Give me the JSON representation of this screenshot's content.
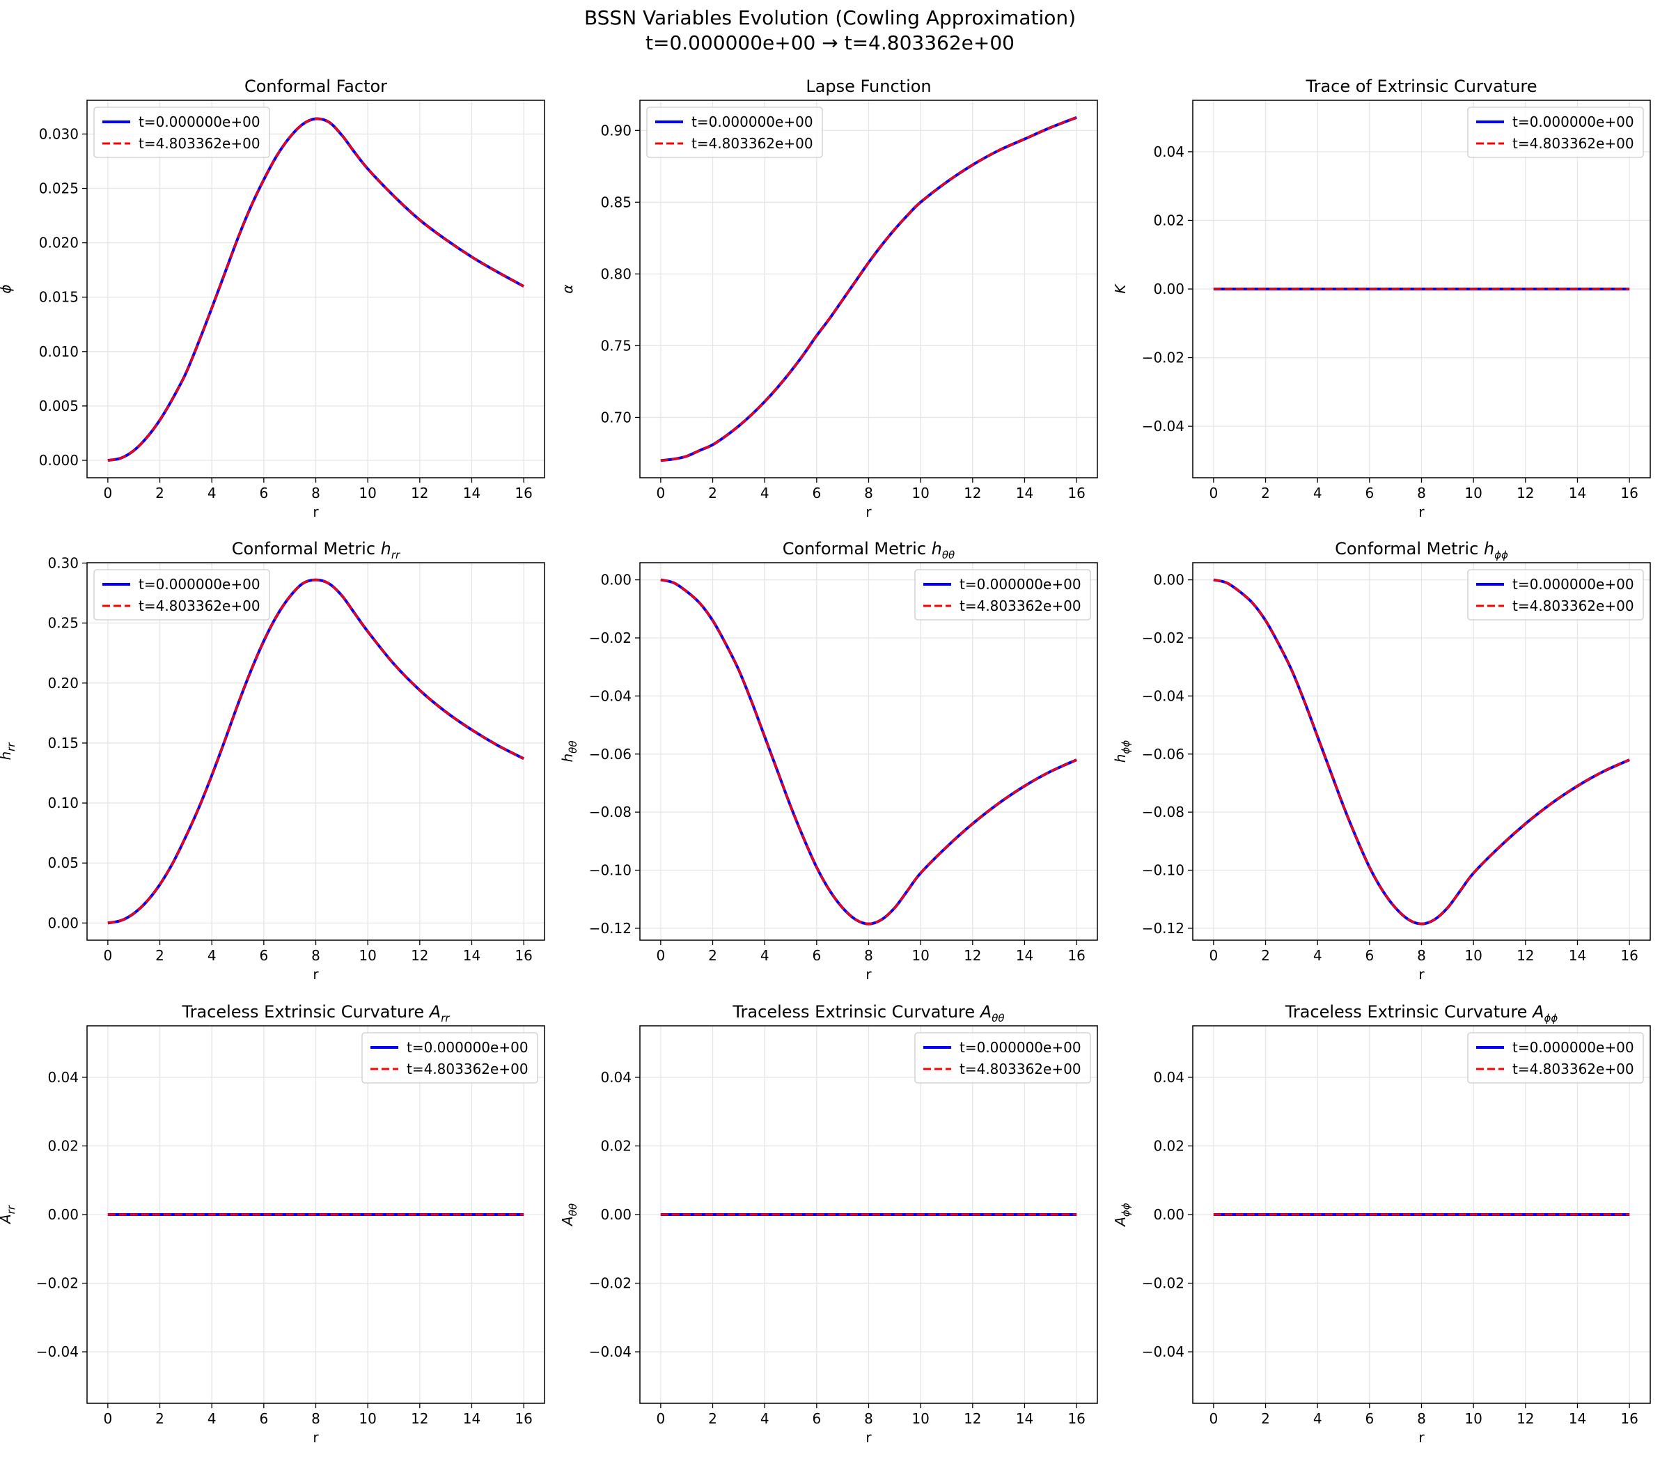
{
  "figure": {
    "title_line1": "BSSN Variables Evolution (Cowling Approximation)",
    "title_line2": "t=0.000000e+00 → t=4.803362e+00"
  },
  "legend": {
    "initial": "t=0.000000e+00",
    "final": "t=4.803362e+00"
  },
  "colors": {
    "initial": "#0000ff",
    "final": "#ff0000",
    "grid": "#e6e6e6"
  },
  "chart_data": [
    {
      "type": "line",
      "title": "Conformal Factor",
      "xlabel": "r",
      "ylabel": "ϕ",
      "xlim": [
        -0.8,
        16.8
      ],
      "ylim": [
        -0.0016,
        0.0331
      ],
      "xticks": [
        0,
        2,
        4,
        6,
        8,
        10,
        12,
        14,
        16
      ],
      "yticks": [
        0.0,
        0.005,
        0.01,
        0.015,
        0.02,
        0.025,
        0.03
      ],
      "ytick_labels": [
        "0.000",
        "0.005",
        "0.010",
        "0.015",
        "0.020",
        "0.025",
        "0.030"
      ],
      "legend_position": "upper-left",
      "grid": true,
      "x": [
        0,
        0.5,
        1,
        1.5,
        2,
        2.5,
        3,
        3.5,
        4,
        4.5,
        5,
        5.5,
        6,
        6.5,
        7,
        7.5,
        8,
        8.5,
        9,
        9.5,
        10,
        11,
        12,
        13,
        14,
        15,
        16
      ],
      "series": [
        {
          "name": "t=0.000000e+00",
          "values": [
            0.0,
            0.0002,
            0.0009,
            0.0021,
            0.0037,
            0.0057,
            0.008,
            0.0109,
            0.014,
            0.0172,
            0.0204,
            0.0233,
            0.0258,
            0.028,
            0.0297,
            0.0309,
            0.0314,
            0.0311,
            0.0299,
            0.0283,
            0.0268,
            0.0243,
            0.0221,
            0.0203,
            0.0187,
            0.0173,
            0.016
          ]
        },
        {
          "name": "t=4.803362e+00",
          "values": [
            0.0,
            0.0002,
            0.0009,
            0.0021,
            0.0037,
            0.0057,
            0.008,
            0.0109,
            0.014,
            0.0172,
            0.0204,
            0.0233,
            0.0258,
            0.028,
            0.0297,
            0.0309,
            0.0314,
            0.0311,
            0.0299,
            0.0283,
            0.0268,
            0.0243,
            0.0221,
            0.0203,
            0.0187,
            0.0173,
            0.016
          ]
        }
      ]
    },
    {
      "type": "line",
      "title": "Lapse Function",
      "xlabel": "r",
      "ylabel": "α",
      "xlim": [
        -0.8,
        16.8
      ],
      "ylim": [
        0.658,
        0.921
      ],
      "xticks": [
        0,
        2,
        4,
        6,
        8,
        10,
        12,
        14,
        16
      ],
      "yticks": [
        0.7,
        0.75,
        0.8,
        0.85,
        0.9
      ],
      "ytick_labels": [
        "0.70",
        "0.75",
        "0.80",
        "0.85",
        "0.90"
      ],
      "legend_position": "upper-left",
      "grid": true,
      "x": [
        0,
        0.5,
        1,
        1.5,
        2,
        2.5,
        3,
        3.5,
        4,
        4.5,
        5,
        5.5,
        6,
        6.5,
        7,
        7.5,
        8,
        8.5,
        9,
        9.5,
        10,
        11,
        12,
        13,
        14,
        15,
        16
      ],
      "series": [
        {
          "name": "t=0.000000e+00",
          "values": [
            0.67,
            0.671,
            0.673,
            0.677,
            0.681,
            0.687,
            0.694,
            0.702,
            0.711,
            0.721,
            0.732,
            0.744,
            0.757,
            0.769,
            0.782,
            0.795,
            0.808,
            0.82,
            0.831,
            0.841,
            0.85,
            0.864,
            0.876,
            0.886,
            0.894,
            0.902,
            0.909
          ]
        },
        {
          "name": "t=4.803362e+00",
          "values": [
            0.67,
            0.671,
            0.673,
            0.677,
            0.681,
            0.687,
            0.694,
            0.702,
            0.711,
            0.721,
            0.732,
            0.744,
            0.757,
            0.769,
            0.782,
            0.795,
            0.808,
            0.82,
            0.831,
            0.841,
            0.85,
            0.864,
            0.876,
            0.886,
            0.894,
            0.902,
            0.909
          ]
        }
      ]
    },
    {
      "type": "line",
      "title": "Trace of Extrinsic Curvature",
      "xlabel": "r",
      "ylabel": "K",
      "xlim": [
        -0.8,
        16.8
      ],
      "ylim": [
        -0.055,
        0.055
      ],
      "xticks": [
        0,
        2,
        4,
        6,
        8,
        10,
        12,
        14,
        16
      ],
      "yticks": [
        -0.04,
        -0.02,
        0.0,
        0.02,
        0.04
      ],
      "ytick_labels": [
        "−0.04",
        "−0.02",
        "0.00",
        "0.02",
        "0.04"
      ],
      "legend_position": "upper-right",
      "grid": true,
      "x": [
        0,
        16
      ],
      "series": [
        {
          "name": "t=0.000000e+00",
          "values": [
            0,
            0
          ]
        },
        {
          "name": "t=4.803362e+00",
          "values": [
            0,
            0
          ]
        }
      ]
    },
    {
      "type": "line",
      "title": "Conformal Metric h",
      "title_sub": "rr",
      "xlabel": "r",
      "ylabel": "h",
      "ylabel_sub": "rr",
      "xlim": [
        -0.8,
        16.8
      ],
      "ylim": [
        -0.0143,
        0.3003
      ],
      "xticks": [
        0,
        2,
        4,
        6,
        8,
        10,
        12,
        14,
        16
      ],
      "yticks": [
        0.0,
        0.05,
        0.1,
        0.15,
        0.2,
        0.25,
        0.3
      ],
      "ytick_labels": [
        "0.00",
        "0.05",
        "0.10",
        "0.15",
        "0.20",
        "0.25",
        "0.30"
      ],
      "legend_position": "upper-left",
      "grid": true,
      "x": [
        0,
        0.5,
        1,
        1.5,
        2,
        2.5,
        3,
        3.5,
        4,
        4.5,
        5,
        5.5,
        6,
        6.5,
        7,
        7.5,
        8,
        8.5,
        9,
        9.5,
        10,
        11,
        12,
        13,
        14,
        15,
        16
      ],
      "series": [
        {
          "name": "t=0.000000e+00",
          "values": [
            0.0,
            0.002,
            0.008,
            0.018,
            0.032,
            0.05,
            0.072,
            0.096,
            0.123,
            0.152,
            0.182,
            0.21,
            0.235,
            0.256,
            0.272,
            0.283,
            0.286,
            0.283,
            0.273,
            0.258,
            0.243,
            0.216,
            0.194,
            0.176,
            0.161,
            0.148,
            0.137
          ]
        },
        {
          "name": "t=4.803362e+00",
          "values": [
            0.0,
            0.002,
            0.008,
            0.018,
            0.032,
            0.05,
            0.072,
            0.096,
            0.123,
            0.152,
            0.182,
            0.21,
            0.235,
            0.256,
            0.272,
            0.283,
            0.286,
            0.283,
            0.273,
            0.258,
            0.243,
            0.216,
            0.194,
            0.176,
            0.161,
            0.148,
            0.137
          ]
        }
      ]
    },
    {
      "type": "line",
      "title": "Conformal Metric h",
      "title_sub": "θθ",
      "xlabel": "r",
      "ylabel": "h",
      "ylabel_sub": "θθ",
      "xlim": [
        -0.8,
        16.8
      ],
      "ylim": [
        -0.1241,
        0.0059
      ],
      "xticks": [
        0,
        2,
        4,
        6,
        8,
        10,
        12,
        14,
        16
      ],
      "yticks": [
        -0.12,
        -0.1,
        -0.08,
        -0.06,
        -0.04,
        -0.02,
        0.0
      ],
      "ytick_labels": [
        "−0.12",
        "−0.10",
        "−0.08",
        "−0.06",
        "−0.04",
        "−0.02",
        "0.00"
      ],
      "legend_position": "upper-right",
      "grid": true,
      "x": [
        0,
        0.5,
        1,
        1.5,
        2,
        2.5,
        3,
        3.5,
        4,
        4.5,
        5,
        5.5,
        6,
        6.5,
        7,
        7.5,
        8,
        8.5,
        9,
        9.5,
        10,
        11,
        12,
        13,
        14,
        15,
        16
      ],
      "series": [
        {
          "name": "t=0.000000e+00",
          "values": [
            0.0,
            -0.001,
            -0.004,
            -0.008,
            -0.014,
            -0.022,
            -0.031,
            -0.042,
            -0.054,
            -0.066,
            -0.078,
            -0.089,
            -0.099,
            -0.107,
            -0.113,
            -0.117,
            -0.1185,
            -0.117,
            -0.113,
            -0.107,
            -0.101,
            -0.092,
            -0.084,
            -0.077,
            -0.071,
            -0.066,
            -0.062
          ]
        },
        {
          "name": "t=4.803362e+00",
          "values": [
            0.0,
            -0.001,
            -0.004,
            -0.008,
            -0.014,
            -0.022,
            -0.031,
            -0.042,
            -0.054,
            -0.066,
            -0.078,
            -0.089,
            -0.099,
            -0.107,
            -0.113,
            -0.117,
            -0.1185,
            -0.117,
            -0.113,
            -0.107,
            -0.101,
            -0.092,
            -0.084,
            -0.077,
            -0.071,
            -0.066,
            -0.062
          ]
        }
      ]
    },
    {
      "type": "line",
      "title": "Conformal Metric h",
      "title_sub": "ϕϕ",
      "xlabel": "r",
      "ylabel": "h",
      "ylabel_sub": "ϕϕ",
      "xlim": [
        -0.8,
        16.8
      ],
      "ylim": [
        -0.1241,
        0.0059
      ],
      "xticks": [
        0,
        2,
        4,
        6,
        8,
        10,
        12,
        14,
        16
      ],
      "yticks": [
        -0.12,
        -0.1,
        -0.08,
        -0.06,
        -0.04,
        -0.02,
        0.0
      ],
      "ytick_labels": [
        "−0.12",
        "−0.10",
        "−0.08",
        "−0.06",
        "−0.04",
        "−0.02",
        "0.00"
      ],
      "legend_position": "upper-right",
      "grid": true,
      "x": [
        0,
        0.5,
        1,
        1.5,
        2,
        2.5,
        3,
        3.5,
        4,
        4.5,
        5,
        5.5,
        6,
        6.5,
        7,
        7.5,
        8,
        8.5,
        9,
        9.5,
        10,
        11,
        12,
        13,
        14,
        15,
        16
      ],
      "series": [
        {
          "name": "t=0.000000e+00",
          "values": [
            0.0,
            -0.001,
            -0.004,
            -0.008,
            -0.014,
            -0.022,
            -0.031,
            -0.042,
            -0.054,
            -0.066,
            -0.078,
            -0.089,
            -0.099,
            -0.107,
            -0.113,
            -0.117,
            -0.1185,
            -0.117,
            -0.113,
            -0.107,
            -0.101,
            -0.092,
            -0.084,
            -0.077,
            -0.071,
            -0.066,
            -0.062
          ]
        },
        {
          "name": "t=4.803362e+00",
          "values": [
            0.0,
            -0.001,
            -0.004,
            -0.008,
            -0.014,
            -0.022,
            -0.031,
            -0.042,
            -0.054,
            -0.066,
            -0.078,
            -0.089,
            -0.099,
            -0.107,
            -0.113,
            -0.117,
            -0.1185,
            -0.117,
            -0.113,
            -0.107,
            -0.101,
            -0.092,
            -0.084,
            -0.077,
            -0.071,
            -0.066,
            -0.062
          ]
        }
      ]
    },
    {
      "type": "line",
      "title": "Traceless Extrinsic Curvature A",
      "title_sub": "rr",
      "xlabel": "r",
      "ylabel": "A",
      "ylabel_sub": "rr",
      "xlim": [
        -0.8,
        16.8
      ],
      "ylim": [
        -0.055,
        0.055
      ],
      "xticks": [
        0,
        2,
        4,
        6,
        8,
        10,
        12,
        14,
        16
      ],
      "yticks": [
        -0.04,
        -0.02,
        0.0,
        0.02,
        0.04
      ],
      "ytick_labels": [
        "−0.04",
        "−0.02",
        "0.00",
        "0.02",
        "0.04"
      ],
      "legend_position": "upper-right",
      "grid": true,
      "x": [
        0,
        16
      ],
      "series": [
        {
          "name": "t=0.000000e+00",
          "values": [
            0,
            0
          ]
        },
        {
          "name": "t=4.803362e+00",
          "values": [
            0,
            0
          ]
        }
      ]
    },
    {
      "type": "line",
      "title": "Traceless Extrinsic Curvature A",
      "title_sub": "θθ",
      "xlabel": "r",
      "ylabel": "A",
      "ylabel_sub": "θθ",
      "xlim": [
        -0.8,
        16.8
      ],
      "ylim": [
        -0.055,
        0.055
      ],
      "xticks": [
        0,
        2,
        4,
        6,
        8,
        10,
        12,
        14,
        16
      ],
      "yticks": [
        -0.04,
        -0.02,
        0.0,
        0.02,
        0.04
      ],
      "ytick_labels": [
        "−0.04",
        "−0.02",
        "0.00",
        "0.02",
        "0.04"
      ],
      "legend_position": "upper-right",
      "grid": true,
      "x": [
        0,
        16
      ],
      "series": [
        {
          "name": "t=0.000000e+00",
          "values": [
            0,
            0
          ]
        },
        {
          "name": "t=4.803362e+00",
          "values": [
            0,
            0
          ]
        }
      ]
    },
    {
      "type": "line",
      "title": "Traceless Extrinsic Curvature A",
      "title_sub": "ϕϕ",
      "xlabel": "r",
      "ylabel": "A",
      "ylabel_sub": "ϕϕ",
      "xlim": [
        -0.8,
        16.8
      ],
      "ylim": [
        -0.055,
        0.055
      ],
      "xticks": [
        0,
        2,
        4,
        6,
        8,
        10,
        12,
        14,
        16
      ],
      "yticks": [
        -0.04,
        -0.02,
        0.0,
        0.02,
        0.04
      ],
      "ytick_labels": [
        "−0.04",
        "−0.02",
        "0.00",
        "0.02",
        "0.04"
      ],
      "legend_position": "upper-right",
      "grid": true,
      "x": [
        0,
        16
      ],
      "series": [
        {
          "name": "t=0.000000e+00",
          "values": [
            0,
            0
          ]
        },
        {
          "name": "t=4.803362e+00",
          "values": [
            0,
            0
          ]
        }
      ]
    }
  ]
}
